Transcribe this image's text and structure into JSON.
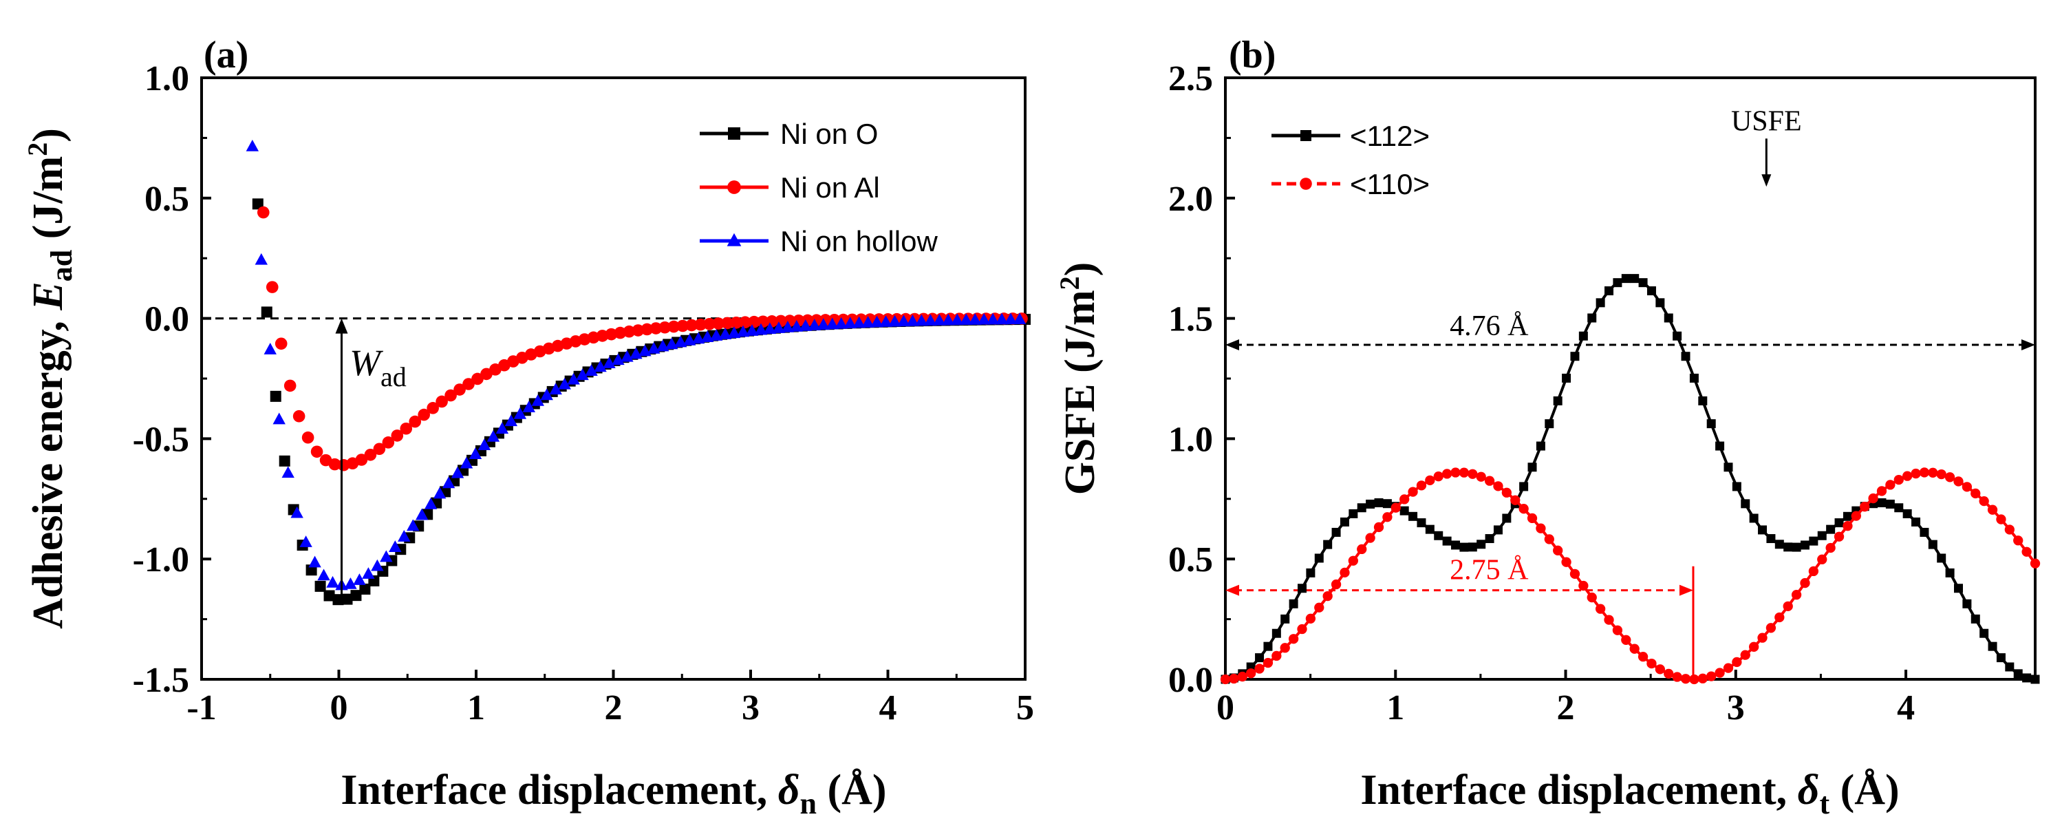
{
  "chart_data": [
    {
      "type": "scatter",
      "panel_label": "(a)",
      "xlabel_main": "Interface displacement, ",
      "xlabel_symbol": "δ",
      "xlabel_sub": "n",
      "xlabel_unit": " (Å)",
      "ylabel_main": "Adhesive energy, ",
      "ylabel_symbol": "E",
      "ylabel_sub": "ad",
      "ylabel_unit": " (J/m",
      "ylabel_sup": "2",
      "ylabel_close": ")",
      "xlim": [
        -1,
        5
      ],
      "ylim": [
        -1.5,
        1.0
      ],
      "xticks": [
        -1,
        0,
        1,
        2,
        3,
        4,
        5
      ],
      "xtick_labels": [
        "-1",
        "0",
        "1",
        "2",
        "3",
        "4",
        "5"
      ],
      "yticks": [
        -1.5,
        -1.0,
        -0.5,
        0.0,
        0.5,
        1.0
      ],
      "ytick_labels": [
        "-1.5",
        "-1.0",
        "-0.5",
        "0.0",
        "0.5",
        "1.0"
      ],
      "zero_line": 0.0,
      "wad_annotation": {
        "label": "W",
        "label_sub": "ad",
        "x": 0.02,
        "y_from": -1.17,
        "y_to": 0.0
      },
      "series": [
        {
          "name": "Ni on O",
          "color": "#000000",
          "marker": "square",
          "model": {
            "D": 1.17,
            "x0": 0.02,
            "w": 0.78
          },
          "x_start": -0.72,
          "x_end": 5.0,
          "step": 0.065
        },
        {
          "name": "Ni on Al",
          "color": "#ff0000",
          "marker": "circle",
          "model": {
            "D": 0.61,
            "x0": 0.02,
            "w": 0.68
          },
          "x_start": -0.55,
          "x_end": 5.0,
          "step": 0.065
        },
        {
          "name": "Ni on hollow",
          "color": "#0000ff",
          "marker": "triangle",
          "model": {
            "D": 1.11,
            "x0": 0.03,
            "w": 0.8
          },
          "x_start": -0.76,
          "x_end": 5.0,
          "step": 0.065
        }
      ]
    },
    {
      "type": "line",
      "panel_label": "(b)",
      "xlabel_main": "Interface displacement, ",
      "xlabel_symbol": "δ",
      "xlabel_sub": "t",
      "xlabel_unit": " (Å)",
      "ylabel_main": "GSFE (J/m",
      "ylabel_sup": "2",
      "ylabel_close": ")",
      "xlim": [
        0,
        4.76
      ],
      "ylim": [
        0,
        2.5
      ],
      "xticks": [
        0,
        1,
        2,
        3,
        4
      ],
      "xtick_labels": [
        "0",
        "1",
        "2",
        "3",
        "4"
      ],
      "yticks": [
        0.0,
        0.5,
        1.0,
        1.5,
        2.0,
        2.5
      ],
      "ytick_labels": [
        "0.0",
        "0.5",
        "1.0",
        "1.5",
        "2.0",
        "2.5"
      ],
      "usfe_label": "USFE",
      "usfe_x": 3.18,
      "usfe_y": 2.03,
      "span_476": {
        "label": "4.76 Å",
        "y": 1.39,
        "x_from": 0,
        "x_to": 4.76
      },
      "span_275": {
        "label": "2.75 Å",
        "y": 0.37,
        "x_from": 0,
        "x_to": 2.75
      },
      "series": [
        {
          "name": "<112>",
          "color": "#000000",
          "marker": "square",
          "period": 4.76,
          "a": [
            0.717,
            -0.522,
            0.102,
            -0.312,
            0.015
          ],
          "points": 96
        },
        {
          "name": "<110>",
          "color": "#ff0000",
          "marker": "circle",
          "period": 2.75,
          "peak": 0.86,
          "points": 96
        }
      ]
    }
  ]
}
